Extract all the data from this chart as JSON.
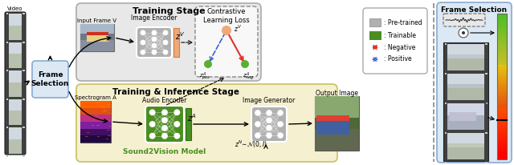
{
  "bg_color": "#ffffff",
  "light_blue_bg": "#dce9f5",
  "gray_box_bg": "#e8e8e8",
  "yellow_box_bg": "#f5f0d0",
  "green_encoder_bg": "#4a8e20",
  "gray_encoder_bg": "#b0b0b0",
  "orange_bar_color": "#f0a878",
  "green_bar_color": "#4a8e20",
  "training_stage_title": "Training Stage",
  "inference_stage_title": "Training & Inference Stage",
  "frame_selection_title": "Frame Selection",
  "video_label": "Video",
  "input_frame_label": "Input Frame V",
  "spectrogram_label": "Spectrogram A",
  "image_encoder_label": "Image Encoder",
  "audio_encoder_label": "Audio Encoder",
  "image_generator_label": "Image Generator",
  "output_image_label": "Output Image",
  "contrastive_label": "Contrastive\nLearning Loss",
  "sound2vision_label": "Sound2Vision Model",
  "legend_pretrained": "Pre-trained",
  "legend_trainable": "Trainable",
  "legend_negative": "Negative",
  "legend_positive": "Positive",
  "pretrained_color": "#b0b0b0",
  "trainable_color": "#4a8e20",
  "negative_color": "#e03030",
  "positive_color": "#4060d0",
  "zv_top_color": "#f0a878",
  "zpos_color": "#5ab030",
  "zneg_color": "#5ab030"
}
